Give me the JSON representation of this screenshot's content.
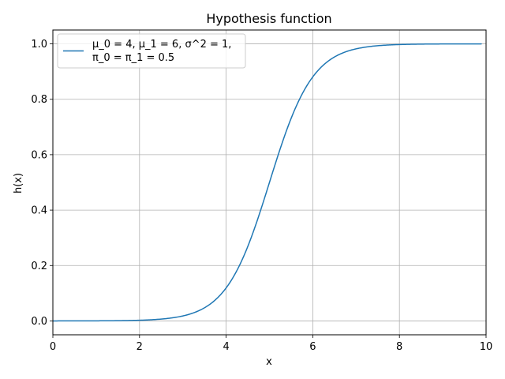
{
  "chart_data": {
    "type": "line",
    "title": "Hypothesis function",
    "xlabel": "x",
    "ylabel": "h(x)",
    "xlim": [
      0,
      10
    ],
    "ylim": [
      -0.05,
      1.05
    ],
    "xticks": [
      0,
      2,
      4,
      6,
      8,
      10
    ],
    "xtick_labels": [
      "0",
      "2",
      "4",
      "6",
      "8",
      "10"
    ],
    "yticks": [
      0.0,
      0.2,
      0.4,
      0.6,
      0.8,
      1.0
    ],
    "ytick_labels": [
      "0.0",
      "0.2",
      "0.4",
      "0.6",
      "0.8",
      "1.0"
    ],
    "grid": true,
    "legend_position": "upper-left",
    "series": [
      {
        "name": "μ_0 = 4, μ_1 = 6, σ^2 = 1,\nπ_0 = π_1 = 0.5",
        "legend_lines": [
          "μ_0 = 4, μ_1 = 6, σ^2 = 1,",
          "π_0 = π_1 = 0.5"
        ],
        "color": "#1f77b4",
        "x_range": [
          0,
          9.9
        ],
        "function": "1 / (1 + exp(-2 * (x - 5)))"
      }
    ]
  }
}
